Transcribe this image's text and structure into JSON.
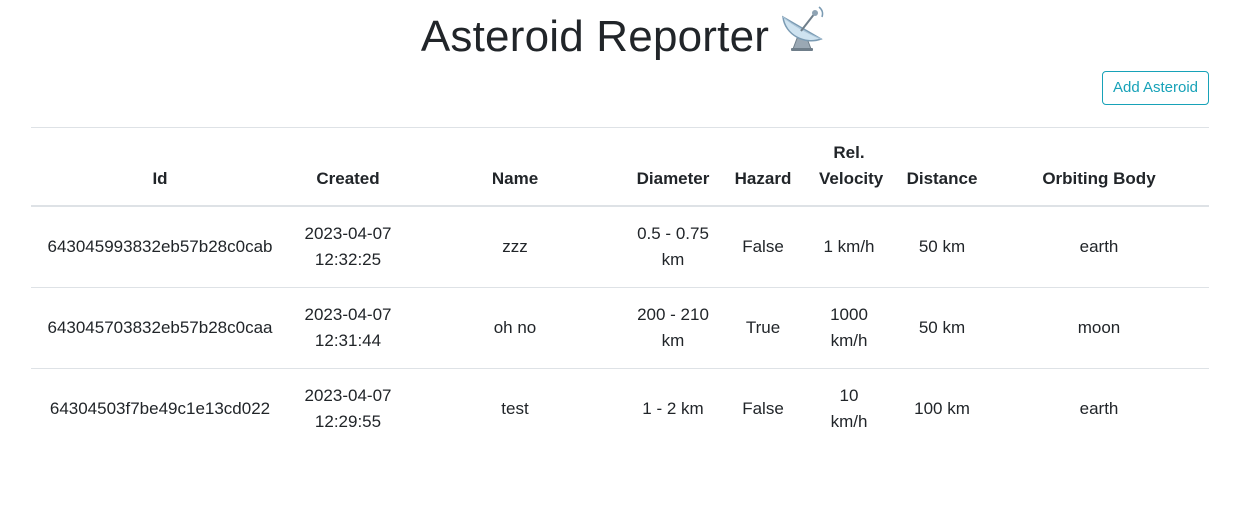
{
  "header": {
    "title": "Asteroid Reporter",
    "title_icon": "satellite-antenna-icon",
    "add_button_label": "Add Asteroid"
  },
  "colors": {
    "accent": "#17a2b8",
    "text": "#212529",
    "border": "#dee2e6"
  },
  "table": {
    "columns": [
      {
        "label": "Id"
      },
      {
        "label": "Created"
      },
      {
        "label": "Name"
      },
      {
        "label": "Diameter"
      },
      {
        "label": "Hazard"
      },
      {
        "label": "Rel. Velocity"
      },
      {
        "label": "Distance"
      },
      {
        "label": "Orbiting Body"
      }
    ],
    "rows": [
      {
        "id": "643045993832eb57b28c0cab",
        "created": "2023-04-07 12:32:25",
        "name": "zzz",
        "diameter": "0.5 - 0.75 km",
        "hazard": "False",
        "velocity": "1 km/h",
        "distance": "50 km",
        "orbiting_body": "earth"
      },
      {
        "id": "643045703832eb57b28c0caa",
        "created": "2023-04-07 12:31:44",
        "name": "oh no",
        "diameter": "200 - 210 km",
        "hazard": "True",
        "velocity": "1000 km/h",
        "distance": "50 km",
        "orbiting_body": "moon"
      },
      {
        "id": "64304503f7be49c1e13cd022",
        "created": "2023-04-07 12:29:55",
        "name": "test",
        "diameter": "1 - 2 km",
        "hazard": "False",
        "velocity": "10 km/h",
        "distance": "100 km",
        "orbiting_body": "earth"
      }
    ]
  }
}
